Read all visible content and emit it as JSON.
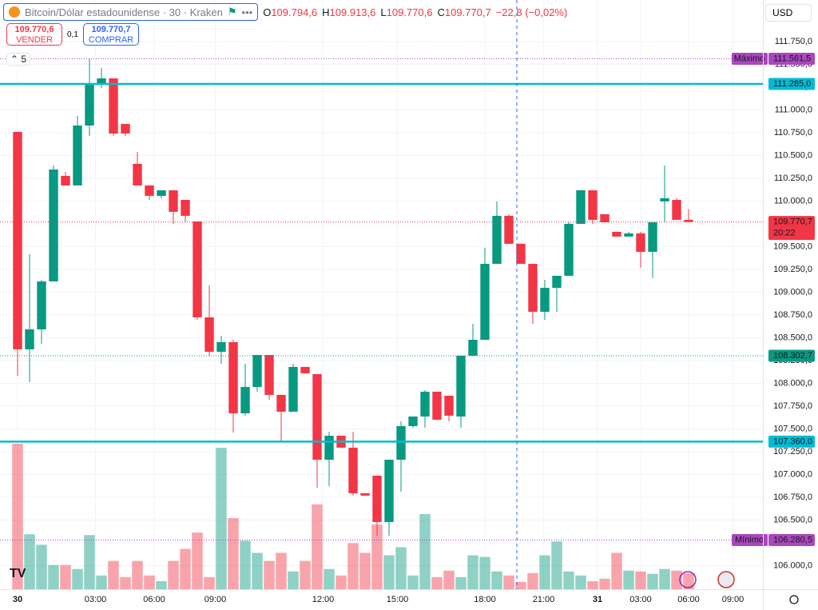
{
  "chart_data": {
    "type": "candlestick",
    "title": "Bitcoin/Dólar estadounidense · 30 · Kraken",
    "ohlc": [
      {
        "key": "O",
        "value": "109.794,6"
      },
      {
        "key": "H",
        "value": "109.913,6"
      },
      {
        "key": "L",
        "value": "109.770,6"
      },
      {
        "key": "C",
        "value": "109.770,7"
      }
    ],
    "change": "−22,8 (−0,02%)",
    "sell": {
      "price": "109.770,6",
      "label": "VENDER"
    },
    "spread": "0,1",
    "buy": {
      "price": "109.770,7",
      "label": "COMPRAR"
    },
    "indicators": "5",
    "currency": "USD",
    "up_color": "#089981",
    "down_color": "#f23645",
    "open": [
      110759,
      108373,
      108592,
      109118,
      110276,
      110171,
      110829,
      111285,
      111346,
      110846,
      110408,
      110171,
      110057,
      110118,
      110013,
      109776,
      108724,
      108346,
      108452,
      107671,
      107960,
      108311,
      107873,
      107689,
      108180,
      108101,
      107162,
      107425,
      107294,
      106794,
      106987,
      106478,
      107162,
      107531,
      107636,
      107908,
      107864,
      107636,
      108303,
      108478,
      109311,
      109838,
      109531,
      109311,
      108785,
      109048,
      109180,
      109750,
      110118,
      109855,
      109662,
      109610,
      109645,
      109443,
      109996,
      110013,
      109794.6
    ],
    "high": [
      110759,
      109417,
      109136,
      110390,
      110320,
      110934,
      111561.5,
      111461,
      111346,
      110846,
      110539,
      110171,
      110118,
      110118,
      110013,
      109776,
      109075,
      108522,
      108478,
      108215,
      108311,
      108311,
      107873,
      108215,
      108180,
      108101,
      107469,
      107425,
      107469,
      106794,
      106987,
      107162,
      107583,
      107636,
      107925,
      107908,
      107864,
      108303,
      108653,
      109487,
      109996,
      109855,
      109531,
      109311,
      109136,
      109180,
      109767,
      110118,
      110118,
      109855,
      109662,
      109662,
      109662,
      109767,
      110390,
      110031,
      109913.6
    ],
    "low": [
      108083,
      108013,
      108434,
      109118,
      110171,
      110171,
      110715,
      111241,
      110715,
      110715,
      110171,
      110013,
      110031,
      109750,
      109767,
      108697,
      108303,
      108215,
      107460,
      107645,
      107908,
      107820,
      107355,
      107689,
      108110,
      106855,
      106873,
      107294,
      106768,
      106768,
      106329,
      106329,
      106811,
      107513,
      107513,
      107601,
      107583,
      107513,
      108303,
      108478,
      109311,
      109531,
      109311,
      108653,
      108697,
      108785,
      109180,
      109750,
      109750,
      109767,
      109610,
      109610,
      109268,
      109154,
      109767,
      109794,
      109770.6
    ],
    "close": [
      108373,
      108592,
      109118,
      110346,
      110171,
      110829,
      111285,
      111346,
      110741,
      110741,
      110171,
      110057,
      110118,
      109882,
      109838,
      108724,
      108346,
      108452,
      107671,
      107960,
      108311,
      107873,
      107689,
      108180,
      108110,
      107162,
      107425,
      107294,
      106794,
      106768,
      106478,
      107162,
      107531,
      107636,
      107908,
      107601,
      107645,
      108303,
      108478,
      109311,
      109838,
      109531,
      109311,
      108785,
      109048,
      109180,
      109750,
      110118,
      109794,
      109767,
      109610,
      109645,
      109443,
      109767,
      110031,
      109794,
      109770.7
    ],
    "volume": [
      180,
      68,
      55,
      30,
      30,
      25,
      67,
      17,
      35,
      15,
      35,
      17,
      10,
      35,
      50,
      70,
      15,
      175,
      88,
      60,
      45,
      35,
      45,
      22,
      35,
      105,
      25,
      17,
      57,
      45,
      80,
      42,
      52,
      17,
      93,
      15,
      23,
      15,
      42,
      40,
      22,
      17,
      9,
      20,
      42,
      59,
      22,
      17,
      10,
      13,
      45,
      23,
      22,
      19,
      25,
      23,
      20
    ],
    "xlim": [
      -1.467,
      62.2
    ],
    "xticks": [
      {
        "value": 0,
        "label": "30"
      },
      {
        "value": 6.5,
        "label": "03:00"
      },
      {
        "value": 11.4,
        "label": "06:00"
      },
      {
        "value": 16.5,
        "label": "09:00"
      },
      {
        "value": 25.5,
        "label": "12:00"
      },
      {
        "value": 31.7,
        "label": "15:00"
      },
      {
        "value": 39,
        "label": "18:00"
      },
      {
        "value": 43.9,
        "label": "21:00"
      },
      {
        "value": 48.4,
        "label": "31"
      },
      {
        "value": 52,
        "label": "03:00"
      },
      {
        "value": 56,
        "label": "06:00"
      },
      {
        "value": 59.7,
        "label": "09:00"
      }
    ],
    "ylim": [
      105741,
      112206
    ],
    "yticks": [
      {
        "value": 106000,
        "label": "106.000,0"
      },
      {
        "value": 106250,
        "label": "106.250,0"
      },
      {
        "value": 106500,
        "label": "106.500,0"
      },
      {
        "value": 106750,
        "label": "106.750,0"
      },
      {
        "value": 107000,
        "label": "107.000,0"
      },
      {
        "value": 107250,
        "label": "107.250,0"
      },
      {
        "value": 107500,
        "label": "107.500,0"
      },
      {
        "value": 107750,
        "label": "107.750,0"
      },
      {
        "value": 108000,
        "label": "108.000,0"
      },
      {
        "value": 108250,
        "label": "108.250,0"
      },
      {
        "value": 108500,
        "label": "108.500,0"
      },
      {
        "value": 108750,
        "label": "108.750,0"
      },
      {
        "value": 109000,
        "label": "109.000,0"
      },
      {
        "value": 109250,
        "label": "109.250,0"
      },
      {
        "value": 109500,
        "label": "109.500,0"
      },
      {
        "value": 109750,
        "label": "109.750,0"
      },
      {
        "value": 110000,
        "label": "110.000,0"
      },
      {
        "value": 110250,
        "label": "110.250,0"
      },
      {
        "value": 110500,
        "label": "110.500,0"
      },
      {
        "value": 110750,
        "label": "110.750,0"
      },
      {
        "value": 111000,
        "label": "111.000,0"
      },
      {
        "value": 111250,
        "label": "111.250,0"
      },
      {
        "value": 111500,
        "label": "111.500,0"
      },
      {
        "value": 111750,
        "label": "111.750,0"
      }
    ],
    "price_lines": [
      {
        "name": "Máximo",
        "value": 111561.5,
        "label": "111.561,5",
        "color": "#ab47bc",
        "style": "dotted"
      },
      {
        "value": 111285,
        "label": "111.285,0",
        "color": "#00bcd4",
        "style": "solid"
      },
      {
        "value": 109770.7,
        "label": "109.770,7",
        "countdown": "20:22",
        "color": "#f23645",
        "style": "dotted"
      },
      {
        "value": 108302.7,
        "label": "108.302,7",
        "color": "#089981",
        "style": "dotted"
      },
      {
        "value": 107360,
        "label": "107.360,0",
        "color": "#00bcd4",
        "style": "solid"
      },
      {
        "name": "Mínimo",
        "value": 106280.5,
        "label": "106.280,5",
        "color": "#ab47bc",
        "style": "dotted"
      }
    ]
  }
}
